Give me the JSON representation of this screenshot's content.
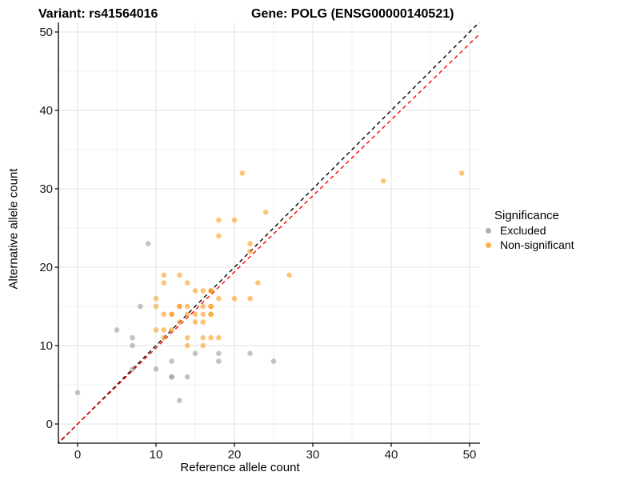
{
  "chart_data": {
    "type": "scatter",
    "title_left": "Variant: rs41564016",
    "title_right": "Gene: POLG (ENSG00000140521)",
    "xlabel": "Reference allele count",
    "ylabel": "Alternative allele count",
    "xlim": [
      -2.5,
      52.5
    ],
    "ylim": [
      -2.5,
      52.5
    ],
    "grid": "on",
    "axes": {
      "xticks": [
        0,
        10,
        20,
        30,
        40,
        50
      ],
      "yticks": [
        0,
        10,
        20,
        30,
        40,
        50
      ],
      "minor_ticks": [
        5,
        15,
        25,
        35,
        45
      ]
    },
    "legend": {
      "title": "Significance",
      "position": "right",
      "entries": [
        {
          "label": "Excluded",
          "color": "#9B9B9B"
        },
        {
          "label": "Non-significant",
          "color": "#FB9C1C"
        }
      ]
    },
    "lines": [
      {
        "name": "identity-line",
        "style": "dashed",
        "color": "#000000",
        "slope": 1.0,
        "intercept": 0.0
      },
      {
        "name": "fit-line",
        "style": "dashed",
        "color": "#FF0000",
        "slope": 0.97,
        "intercept": 0.0
      }
    ],
    "series": [
      {
        "name": "Excluded",
        "color": "#9B9B9B",
        "points": [
          [
            0,
            4
          ],
          [
            5,
            12
          ],
          [
            7,
            7
          ],
          [
            7,
            10
          ],
          [
            7,
            11
          ],
          [
            8,
            15
          ],
          [
            9,
            23
          ],
          [
            10,
            7
          ],
          [
            12,
            6
          ],
          [
            12,
            6
          ],
          [
            12,
            8
          ],
          [
            13,
            3
          ],
          [
            14,
            6
          ],
          [
            15,
            9
          ],
          [
            18,
            8
          ],
          [
            18,
            9
          ],
          [
            22,
            9
          ],
          [
            25,
            8
          ]
        ]
      },
      {
        "name": "Non-significant",
        "color": "#FB9C1C",
        "points": [
          [
            11,
            19
          ],
          [
            13,
            19
          ],
          [
            11,
            18
          ],
          [
            14,
            18
          ],
          [
            23,
            18
          ],
          [
            15,
            17
          ],
          [
            16,
            17
          ],
          [
            17,
            17
          ],
          [
            17,
            17
          ],
          [
            10,
            16
          ],
          [
            18,
            16
          ],
          [
            20,
            16
          ],
          [
            22,
            16
          ],
          [
            10,
            15
          ],
          [
            13,
            15
          ],
          [
            13,
            15
          ],
          [
            14,
            15
          ],
          [
            16,
            15
          ],
          [
            17,
            15
          ],
          [
            17,
            15
          ],
          [
            11,
            14
          ],
          [
            12,
            14
          ],
          [
            12,
            14
          ],
          [
            14,
            14
          ],
          [
            15,
            14
          ],
          [
            16,
            14
          ],
          [
            17,
            14
          ],
          [
            17,
            14
          ],
          [
            13,
            13
          ],
          [
            15,
            13
          ],
          [
            16,
            13
          ],
          [
            10,
            12
          ],
          [
            11,
            12
          ],
          [
            12,
            12
          ],
          [
            11,
            11
          ],
          [
            14,
            11
          ],
          [
            16,
            11
          ],
          [
            17,
            11
          ],
          [
            18,
            11
          ],
          [
            14,
            10
          ],
          [
            16,
            10
          ],
          [
            18,
            24
          ],
          [
            18,
            26
          ],
          [
            20,
            26
          ],
          [
            21,
            32
          ],
          [
            22,
            22
          ],
          [
            22,
            23
          ],
          [
            24,
            27
          ],
          [
            27,
            19
          ],
          [
            39,
            31
          ],
          [
            49,
            32
          ]
        ]
      }
    ]
  }
}
